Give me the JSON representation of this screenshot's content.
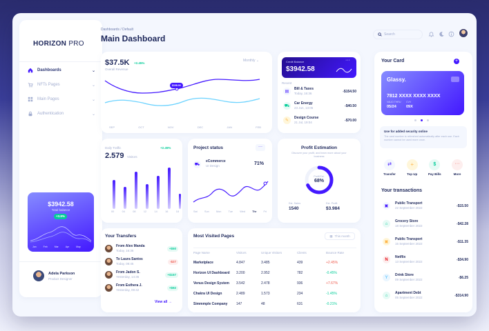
{
  "sidebar": {
    "logo_bold": "HORIZON",
    "logo_light": "PRO",
    "items": [
      {
        "label": "Dashboards"
      },
      {
        "label": "NFTs Pages"
      },
      {
        "label": "Main Pages"
      },
      {
        "label": "Authentication"
      }
    ],
    "promo": {
      "amount": "$3942.58",
      "caption": "Total balance",
      "badge": "+3.8%",
      "months": [
        "Jan",
        "Feb",
        "Mar",
        "Apr",
        "May"
      ]
    },
    "user": {
      "name": "Adela Parkson",
      "role": "Product Designer"
    }
  },
  "header": {
    "breadcrumb": "Dashboards / Default",
    "title": "Main Dashboard",
    "search_placeholder": "Search"
  },
  "revenue": {
    "value": "$37.5K",
    "change": "+2.45%",
    "caption": "Overall Revenue",
    "period": "Monthly",
    "tooltip": "$108.00",
    "months": [
      "SEP",
      "OCT",
      "NOV",
      "DEC",
      "JAN",
      "FEB"
    ]
  },
  "credit": {
    "label": "Credit Balance",
    "amount": "$3942.58",
    "recent_label": "Recent",
    "items": [
      {
        "name": "Bill & Taxes",
        "date": "Today, 16:36",
        "amount": "-$154.50"
      },
      {
        "name": "Car Energy",
        "date": "23 Jun, 13:06",
        "amount": "-$40.50"
      },
      {
        "name": "Design Course",
        "date": "21 Jul, 19:04",
        "amount": "-$70.00"
      }
    ]
  },
  "card": {
    "title": "Your Card",
    "brand": "Glassy.",
    "number": "7812 XXXX XXXX XXXX",
    "valid_label": "VALID THRU",
    "valid": "05/24",
    "cvv_label": "CVV",
    "cvv": "09X",
    "security_title": "Use for added security online",
    "security_text": "The card number is refreshed automatically after each use. Each number cannot be used more once.",
    "actions": [
      {
        "label": "Transfer"
      },
      {
        "label": "Top Up"
      },
      {
        "label": "Pay Bills"
      },
      {
        "label": "More"
      }
    ]
  },
  "transactions": {
    "title": "Your transactions",
    "items": [
      {
        "name": "Public Transport",
        "date": "22 September 2022",
        "amount": "-$15.50"
      },
      {
        "name": "Grocery Store",
        "date": "18 September 2022",
        "amount": "-$42.28"
      },
      {
        "name": "Public Transport",
        "date": "15 September 2022",
        "amount": "-$11.35"
      },
      {
        "name": "Netflix",
        "date": "13 September 2022",
        "amount": "-$34.90"
      },
      {
        "name": "Drink Store",
        "date": "09 September 2022",
        "amount": "-$6.25"
      },
      {
        "name": "Apartment Debt",
        "date": "05 September 2022",
        "amount": "-$314.90"
      }
    ]
  },
  "traffic": {
    "label": "Daily Traffic",
    "change": "+2.45%",
    "value": "2.579",
    "unit": "Visitors",
    "hours": [
      "00",
      "04",
      "08",
      "12",
      "14",
      "16",
      "18"
    ]
  },
  "project": {
    "title": "Project status",
    "item_name": "eCommerce",
    "item_sub": "UI Design",
    "percent": "71%",
    "days": [
      "Sat",
      "Sun",
      "Mon",
      "Tue",
      "Wed",
      "Thr",
      "Fri"
    ]
  },
  "profit": {
    "title": "Profit Estimation",
    "subtitle": "Discover your profit, and learn more about your business",
    "center_label": "Profit Est.",
    "percent": "68%",
    "sales_label": "Est. Sales",
    "sales": "1540",
    "profit_label": "Est. Profit",
    "profit": "$3.984"
  },
  "transfers": {
    "title": "Your Transfers",
    "view_all": "View all",
    "items": [
      {
        "name": "From Alex Manda",
        "time": "Today, 16:36",
        "amount": "+$50"
      },
      {
        "name": "To Laura Santos",
        "time": "Today, 08:45",
        "amount": "-$27"
      },
      {
        "name": "From Jadon S.",
        "time": "Yesterday, 14:36",
        "amount": "+$157"
      },
      {
        "name": "From Esthera J.",
        "time": "Yesterday, 09:42",
        "amount": "+$92"
      }
    ]
  },
  "pages": {
    "title": "Most Visited Pages",
    "filter": "This month",
    "columns": [
      "Page Name",
      "Visitors",
      "Unique Visitors",
      "Clients",
      "Bounce Rate"
    ],
    "rows": [
      [
        "Marketplace",
        "4.847",
        "3.485",
        "439",
        "+2.45%"
      ],
      [
        "Horizon UI Dashboard",
        "3.200",
        "2.952",
        "782",
        "-0.45%"
      ],
      [
        "Venus Design System",
        "3.542",
        "2.478",
        "936",
        "+7.67%"
      ],
      [
        "Chakra UI Design",
        "2.489",
        "1.573",
        "234",
        "-1.45%"
      ],
      [
        "Simmmple Company",
        "147",
        "48",
        "631",
        "-0.21%"
      ]
    ]
  },
  "colors": {
    "accent": "#4318ff",
    "green": "#05cd99",
    "red": "#ee5d50",
    "text": "#1b2559"
  }
}
